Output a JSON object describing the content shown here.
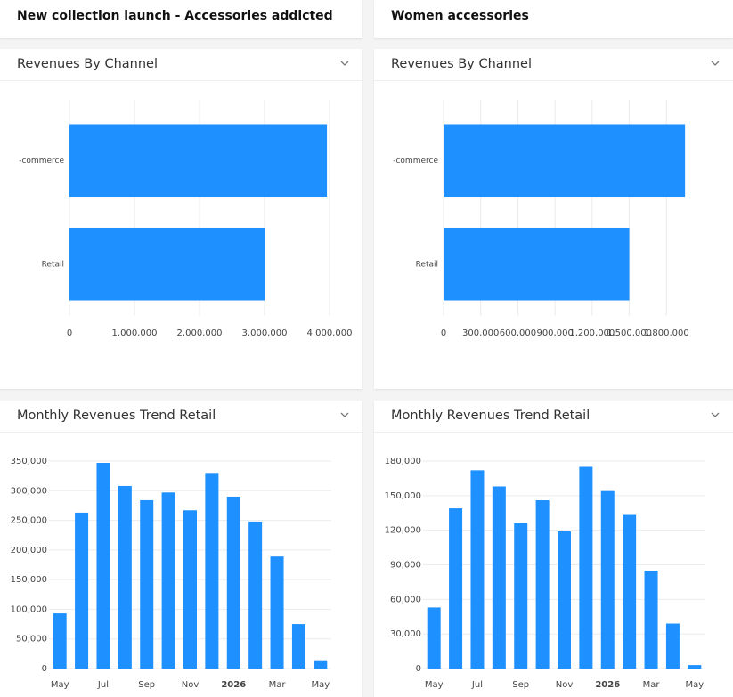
{
  "headers": [
    "New collection launch - Accessories addicted",
    "Women accessories"
  ],
  "chart_data": [
    {
      "type": "barh",
      "title": "Revenues By Channel",
      "color": "#1e90ff",
      "grid": true,
      "categories": [
        "-commerce",
        "Retail"
      ],
      "values": [
        3960000,
        3000000
      ],
      "xlim": [
        0,
        4000000
      ],
      "xticks": [
        0,
        {
          "value": 1000000,
          "label": "1,000,000"
        },
        {
          "value": 2000000,
          "label": "2,000,000"
        },
        {
          "value": 3000000,
          "label": "3,000,000"
        },
        {
          "value": 4000000,
          "label": "4,000,000"
        }
      ]
    },
    {
      "type": "barh",
      "title": "Revenues By Channel",
      "color": "#1e90ff",
      "grid": true,
      "categories": [
        "-commerce",
        "Retail"
      ],
      "values": [
        1950000,
        1500000
      ],
      "xlim": [
        0,
        2100000
      ],
      "xticks": [
        0,
        {
          "value": 300000,
          "label": "300,000"
        },
        {
          "value": 600000,
          "label": "600,000"
        },
        {
          "value": 900000,
          "label": "900,000"
        },
        {
          "value": 1200000,
          "label": "1,200,000"
        },
        {
          "value": 1500000,
          "label": "1,500,000"
        },
        {
          "value": 1800000,
          "label": "1,800,000"
        }
      ]
    },
    {
      "type": "bar",
      "title": "Monthly Revenues Trend Retail",
      "color": "#1e90ff",
      "grid": true,
      "categories": [
        "May",
        null,
        "Jul",
        null,
        "Sep",
        null,
        "Nov",
        null,
        "2026",
        null,
        "Mar",
        null,
        "May"
      ],
      "values": [
        93000,
        263000,
        347000,
        308000,
        284000,
        297000,
        267000,
        330000,
        290000,
        248000,
        189000,
        75000,
        14000
      ],
      "ylim": [
        0,
        350000
      ],
      "yticks": [
        0,
        {
          "value": 50000,
          "label": "50,000"
        },
        {
          "value": 100000,
          "label": "100,000"
        },
        {
          "value": 150000,
          "label": "150,000"
        },
        {
          "value": 200000,
          "label": "200,000"
        },
        {
          "value": 250000,
          "label": "250,000"
        },
        {
          "value": 300000,
          "label": "300,000"
        },
        {
          "value": 350000,
          "label": "350,000"
        }
      ]
    },
    {
      "type": "bar",
      "title": "Monthly Revenues Trend Retail",
      "color": "#1e90ff",
      "grid": true,
      "categories": [
        "May",
        null,
        "Jul",
        null,
        "Sep",
        null,
        "Nov",
        null,
        "2026",
        null,
        "Mar",
        null,
        "May"
      ],
      "values": [
        53000,
        139000,
        172000,
        158000,
        126000,
        146000,
        119000,
        175000,
        154000,
        134000,
        85000,
        39000,
        3000
      ],
      "ylim": [
        0,
        180000
      ],
      "yticks": [
        0,
        {
          "value": 30000,
          "label": "30,000"
        },
        {
          "value": 60000,
          "label": "60,000"
        },
        {
          "value": 90000,
          "label": "90,000"
        },
        {
          "value": 120000,
          "label": "120,000"
        },
        {
          "value": 150000,
          "label": "150,000"
        },
        {
          "value": 180000,
          "label": "180,000"
        }
      ]
    }
  ]
}
